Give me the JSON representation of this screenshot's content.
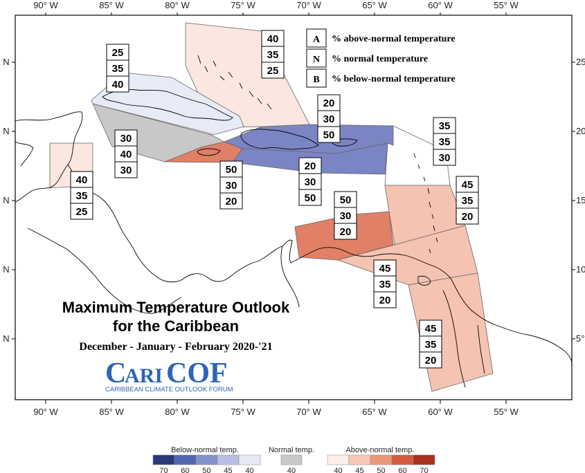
{
  "title": {
    "line1": "Maximum Temperature Outlook",
    "line2": "for the Caribbean",
    "line3": "December - January - February 2020-'21"
  },
  "logo": {
    "name": "CariCOF",
    "caps": "C",
    "rest1": "ARI",
    "caps2": "COF",
    "subtitle": "CARIBBEAN CLIMATE OUTLOOK FORUM"
  },
  "axes": {
    "lon_labels": [
      "90° W",
      "85° W",
      "80° W",
      "75° W",
      "70° W",
      "65° W",
      "60° W",
      "55° W"
    ],
    "lat_labels_left": [
      "N",
      "N",
      "N",
      "N",
      "N"
    ],
    "lat_labels_right": [
      "25",
      "20",
      "15",
      "10",
      "5°"
    ]
  },
  "key": [
    {
      "letter": "A",
      "text": "% above-normal temperature"
    },
    {
      "letter": "N",
      "text": "% normal temperature"
    },
    {
      "letter": "B",
      "text": "% below-normal temperature"
    }
  ],
  "regions": [
    {
      "id": "bahamas",
      "category": "above",
      "A": "40",
      "N": "35",
      "B": "25",
      "color": "#fbe7df"
    },
    {
      "id": "cuba",
      "category": "below",
      "A": "25",
      "N": "35",
      "B": "40",
      "color": "#e6ebf5"
    },
    {
      "id": "cayman-west",
      "category": "normal",
      "A": "30",
      "N": "40",
      "B": "30",
      "color": "#c8c8c8"
    },
    {
      "id": "jamaica",
      "category": "above",
      "A": "50",
      "N": "30",
      "B": "20",
      "color": "#e08066"
    },
    {
      "id": "hispaniola-pr",
      "category": "below",
      "A": "20",
      "N": "30",
      "B": "50",
      "color": "#7b85c4"
    },
    {
      "id": "hispaniola-pr-south",
      "category": "below",
      "A": "20",
      "N": "30",
      "B": "50",
      "color": "#7b85c4"
    },
    {
      "id": "leeward",
      "category": "normal",
      "A": "35",
      "N": "35",
      "B": "30",
      "color": "#ffffff"
    },
    {
      "id": "belize",
      "category": "above",
      "A": "40",
      "N": "35",
      "B": "25",
      "color": "#fbe7df"
    },
    {
      "id": "abc-islands",
      "category": "above",
      "A": "50",
      "N": "30",
      "B": "20",
      "color": "#e08066"
    },
    {
      "id": "windward",
      "category": "above",
      "A": "45",
      "N": "35",
      "B": "20",
      "color": "#f5c3b2"
    },
    {
      "id": "trinidad",
      "category": "above",
      "A": "45",
      "N": "35",
      "B": "20",
      "color": "#f5c3b2"
    },
    {
      "id": "guianas",
      "category": "above",
      "A": "45",
      "N": "35",
      "B": "20",
      "color": "#f5c3b2"
    }
  ],
  "colorbar": {
    "below": {
      "label": "Below-normal temp.",
      "ticks": [
        "70",
        "60",
        "50",
        "45",
        "40"
      ],
      "colors": [
        "#283a78",
        "#5266b0",
        "#8592c9",
        "#b7c0e2",
        "#e6eaf6"
      ]
    },
    "normal": {
      "label": "Normal temp.",
      "ticks": [
        "40"
      ],
      "colors": [
        "#c8c8c8"
      ]
    },
    "above": {
      "label": "Above-normal temp.",
      "ticks": [
        "40",
        "45",
        "50",
        "60",
        "70"
      ],
      "colors": [
        "#fdeee7",
        "#f8c8b6",
        "#ec9878",
        "#d65a3e",
        "#a8301c"
      ]
    }
  }
}
